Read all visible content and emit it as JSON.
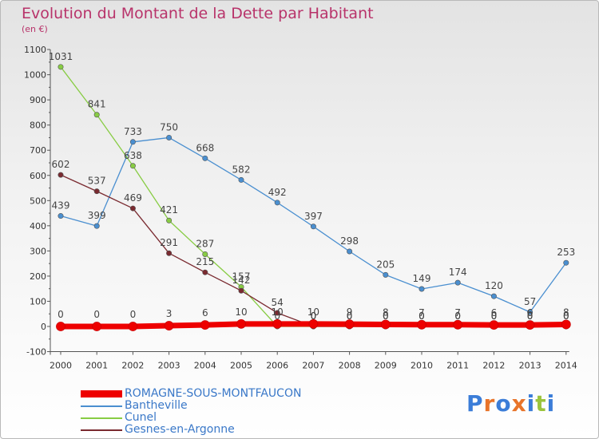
{
  "title": "Evolution du Montant de la Dette par Habitant",
  "unit": "(en €)",
  "logo": {
    "text": "Proxiti"
  },
  "chart_data": {
    "type": "line",
    "title": "Evolution du Montant de la Dette par Habitant",
    "ylabel": "(en €)",
    "xlabel": "",
    "ylim": [
      -100,
      1100
    ],
    "yticks": [
      -100,
      0,
      100,
      200,
      300,
      400,
      500,
      600,
      700,
      800,
      900,
      1000,
      1100
    ],
    "x": [
      "2000",
      "2001",
      "2002",
      "2003",
      "2004",
      "2005",
      "2006",
      "2007",
      "2008",
      "2009",
      "2010",
      "2011",
      "2012",
      "2013",
      "2014"
    ],
    "grid": false,
    "legend_position": "bottom-left",
    "series": [
      {
        "name": "ROMAGNE-SOUS-MONTFAUCON",
        "color": "#ee0000",
        "values": [
          0,
          0,
          0,
          3,
          6,
          10,
          10,
          10,
          9,
          8,
          7,
          7,
          6,
          6,
          8
        ],
        "labels": [
          "0",
          "0",
          "0",
          "3",
          "6",
          "10",
          "10",
          "10",
          "9",
          "8",
          "7",
          "7",
          "6",
          "6",
          "8"
        ]
      },
      {
        "name": "Bantheville",
        "color": "#4a8fd0",
        "values": [
          439,
          399,
          733,
          750,
          668,
          582,
          492,
          397,
          298,
          205,
          149,
          174,
          120,
          57,
          253
        ],
        "labels": [
          "439",
          "399",
          "733",
          "750",
          "668",
          "582",
          "492",
          "397",
          "298",
          "205",
          "149",
          "174",
          "120",
          "57",
          "253"
        ]
      },
      {
        "name": "Cunel",
        "color": "#88cc44",
        "values": [
          1031,
          841,
          638,
          421,
          287,
          157,
          0,
          0,
          0,
          0,
          0,
          0,
          0,
          0,
          0
        ],
        "labels": [
          "1031",
          "841",
          "638",
          "421",
          "287",
          "157",
          "0",
          "0",
          "0",
          "0",
          "0",
          "0",
          "0",
          "0",
          "0"
        ]
      },
      {
        "name": "Gesnes-en-Argonne",
        "color": "#7a2a30",
        "values": [
          602,
          537,
          469,
          291,
          215,
          142,
          54,
          0,
          0,
          0,
          0,
          0,
          0,
          0,
          0
        ],
        "labels": [
          "602",
          "537",
          "469",
          "291",
          "215",
          "142",
          "54",
          "0",
          "0",
          "0",
          "0",
          "0",
          "0",
          "0",
          "0"
        ]
      }
    ]
  }
}
